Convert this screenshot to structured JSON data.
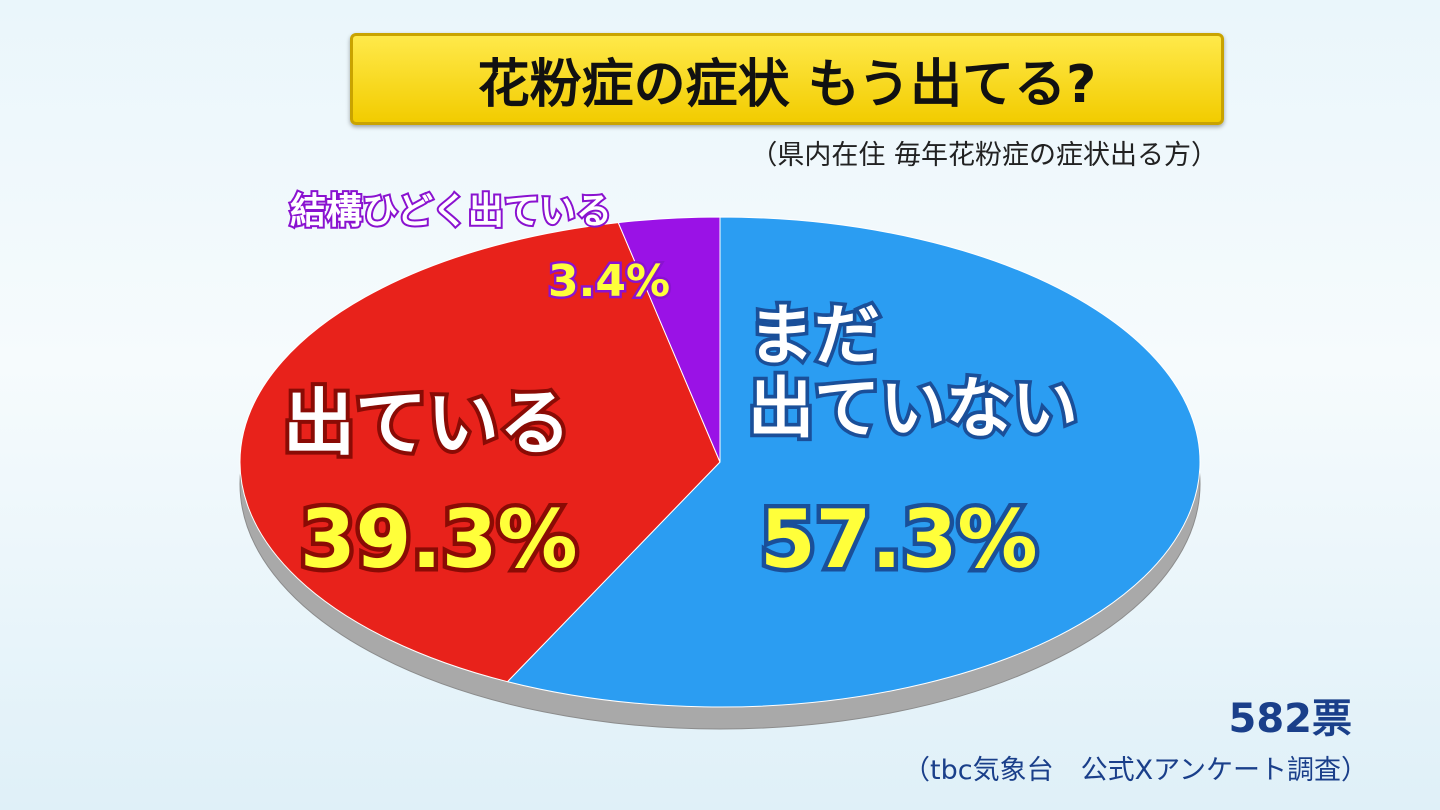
{
  "chart_data": {
    "type": "pie",
    "title": "花粉症の症状 もう出てる?",
    "subtitle": "（県内在住 毎年花粉症の症状出る方）",
    "categories": [
      "まだ\n出ていない",
      "出ている",
      "結構ひどく出ている"
    ],
    "values": [
      57.3,
      39.3,
      3.4
    ],
    "value_labels": [
      "57.3%",
      "39.3%",
      "3.4%"
    ],
    "colors": [
      "#2b9df2",
      "#e8221b",
      "#9a12e6"
    ],
    "note": "582票",
    "source": "（tbc気象台　公式Xアンケート調査）"
  }
}
